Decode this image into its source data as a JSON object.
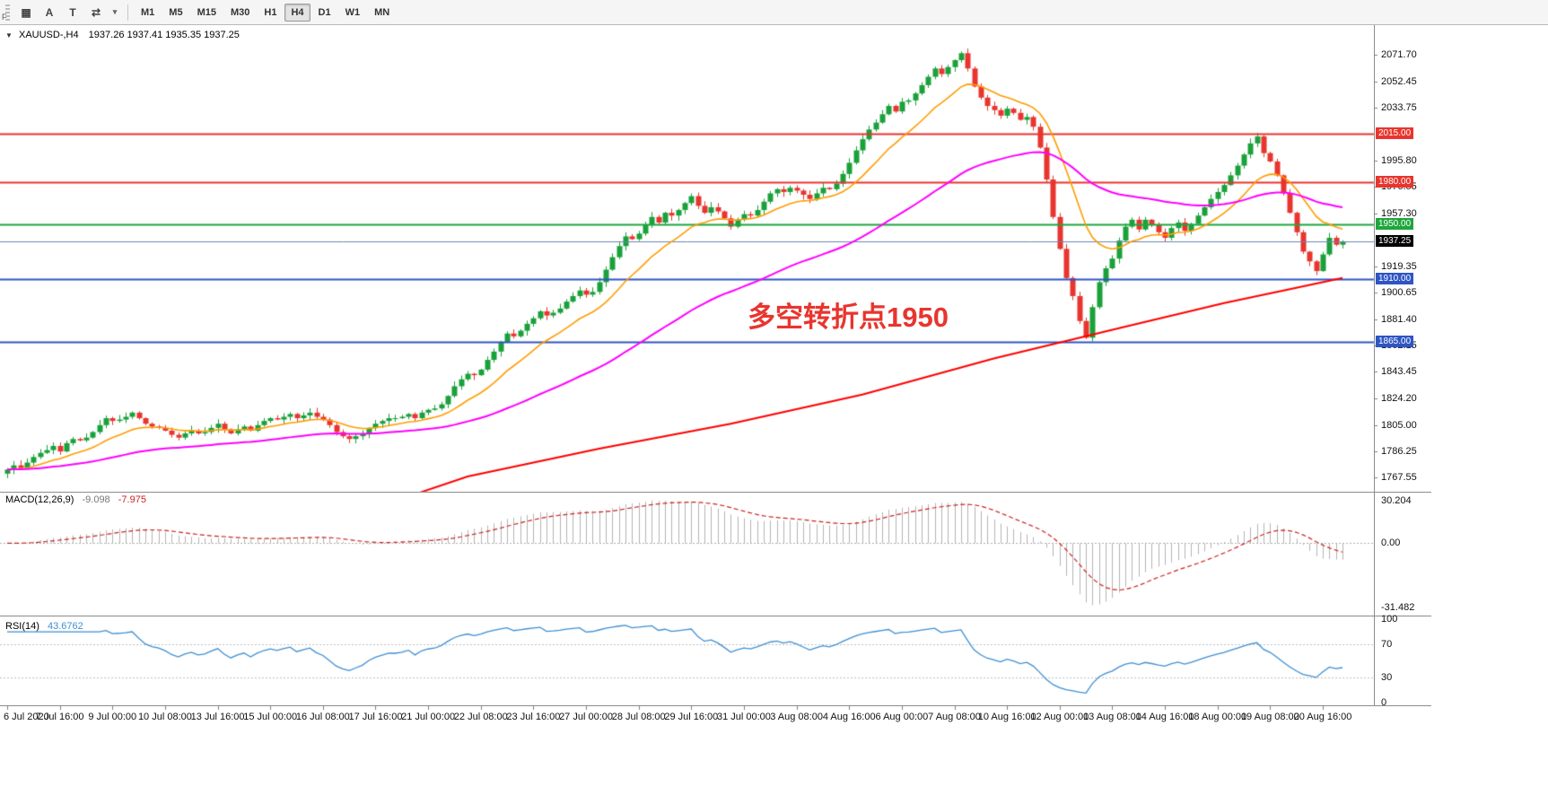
{
  "toolbar": {
    "grip_label": "F",
    "tools": [
      {
        "id": "grid-tool",
        "glyph": "▦"
      },
      {
        "id": "cursor-a-tool",
        "glyph": "A"
      },
      {
        "id": "text-tool",
        "glyph": "T"
      },
      {
        "id": "swap-arrows-tool",
        "glyph": "⇄"
      },
      {
        "id": "tools-dropdown",
        "glyph": "▾"
      }
    ],
    "timeframes": [
      {
        "label": "M1",
        "active": false
      },
      {
        "label": "M5",
        "active": false
      },
      {
        "label": "M15",
        "active": false
      },
      {
        "label": "M30",
        "active": false
      },
      {
        "label": "H1",
        "active": false
      },
      {
        "label": "H4",
        "active": true
      },
      {
        "label": "D1",
        "active": false
      },
      {
        "label": "W1",
        "active": false
      },
      {
        "label": "MN",
        "active": false
      }
    ]
  },
  "chart": {
    "header": {
      "collapse_icon": "▼",
      "symbol_period": "XAUUSD-,H4",
      "ohlc": "1937.26 1937.41 1935.35 1937.25"
    },
    "annotation": {
      "text": "多空转折点1950",
      "color": "#e8352e"
    }
  },
  "macd_panel": {
    "title": "MACD(12,26,9)",
    "value_main": "-9.098",
    "value_signal": "-7.975",
    "axis": [
      "30.204",
      "0.00",
      "-31.482"
    ]
  },
  "rsi_panel": {
    "title": "RSI(14)",
    "value": "43.6762",
    "axis": [
      "100",
      "70",
      "30",
      "0"
    ]
  },
  "chart_data": {
    "type": "candlestick",
    "symbol": "XAUUSD-",
    "timeframe": "H4",
    "up_color": "#1aa13a",
    "down_color": "#e8352e",
    "first_open": 1770,
    "closes": [
      1773,
      1776,
      1774,
      1778,
      1782,
      1785,
      1787,
      1790,
      1786,
      1792,
      1795,
      1794,
      1796,
      1800,
      1805,
      1810,
      1808,
      1809,
      1811,
      1814,
      1810,
      1806,
      1804,
      1803,
      1801,
      1798,
      1796,
      1799,
      1801,
      1799,
      1800,
      1803,
      1806,
      1802,
      1799,
      1802,
      1804,
      1801,
      1805,
      1808,
      1810,
      1809,
      1811,
      1813,
      1810,
      1812,
      1814,
      1811,
      1809,
      1805,
      1800,
      1797,
      1795,
      1797,
      1799,
      1803,
      1806,
      1808,
      1810,
      1810,
      1811,
      1813,
      1810,
      1814,
      1816,
      1817,
      1820,
      1826,
      1833,
      1838,
      1842,
      1841,
      1845,
      1852,
      1858,
      1865,
      1871,
      1869,
      1873,
      1878,
      1882,
      1887,
      1884,
      1886,
      1889,
      1894,
      1898,
      1902,
      1899,
      1901,
      1908,
      1917,
      1926,
      1934,
      1941,
      1939,
      1943,
      1949,
      1955,
      1951,
      1958,
      1956,
      1960,
      1965,
      1970,
      1963,
      1958,
      1962,
      1959,
      1954,
      1948,
      1953,
      1957,
      1956,
      1960,
      1966,
      1972,
      1975,
      1973,
      1976,
      1974,
      1971,
      1968,
      1972,
      1976,
      1975,
      1979,
      1986,
      1994,
      2003,
      2011,
      2018,
      2023,
      2029,
      2035,
      2031,
      2038,
      2039,
      2044,
      2050,
      2056,
      2062,
      2058,
      2063,
      2068,
      2073,
      2062,
      2049,
      2041,
      2035,
      2032,
      2028,
      2033,
      2030,
      2025,
      2027,
      2020,
      2005,
      1982,
      1955,
      1932,
      1911,
      1898,
      1880,
      1868,
      1890,
      1908,
      1918,
      1925,
      1938,
      1948,
      1953,
      1946,
      1953,
      1949,
      1944,
      1940,
      1947,
      1951,
      1945,
      1950,
      1956,
      1962,
      1968,
      1973,
      1978,
      1985,
      1992,
      2000,
      2008,
      2013,
      2001,
      1995,
      1985,
      1972,
      1958,
      1944,
      1930,
      1923,
      1916,
      1928,
      1940,
      1935,
      1937.25
    ],
    "price_axis": {
      "min": 1757,
      "max": 2090,
      "ticks": [
        2071.7,
        2052.45,
        2033.75,
        1995.8,
        1976.55,
        1957.3,
        1919.35,
        1900.65,
        1881.4,
        1862.15,
        1843.45,
        1824.2,
        1805.0,
        1786.25,
        1767.55
      ]
    },
    "levels": [
      {
        "price": 2015.0,
        "label": "2015.00",
        "line_color": "#e8352e",
        "badge_color": "#e8352e",
        "line_width": 2
      },
      {
        "price": 1980.0,
        "label": "1980.00",
        "line_color": "#e8352e",
        "badge_color": "#e8352e",
        "line_width": 2
      },
      {
        "price": 1950.0,
        "label": "1950.00",
        "line_color": "#1fa63d",
        "badge_color": "#1fa63d",
        "line_width": 2
      },
      {
        "price": 1910.0,
        "label": "1910.00",
        "line_color": "#2e55c4",
        "badge_color": "#2e55c4",
        "line_width": 2
      },
      {
        "price": 1865.0,
        "label": "1865.00",
        "line_color": "#2e55c4",
        "badge_color": "#2e55c4",
        "line_width": 2
      }
    ],
    "current_price": {
      "price": 1937.25,
      "label": "1937.25",
      "line_color": "#6b86b5",
      "badge_color": "#000000"
    },
    "moving_averages": [
      {
        "name": "fast-ma",
        "color": "#ff9d00",
        "period": 13
      },
      {
        "name": "medium-ma",
        "color": "#ff00ff",
        "period": 55
      },
      {
        "name": "slow-ma",
        "color": "#ff0000",
        "anchors": [
          [
            55,
            1744
          ],
          [
            70,
            1768
          ],
          [
            90,
            1788
          ],
          [
            110,
            1806
          ],
          [
            130,
            1827
          ],
          [
            150,
            1853
          ],
          [
            170,
            1876
          ],
          [
            185,
            1893
          ],
          [
            195,
            1903
          ],
          [
            203,
            1911
          ]
        ]
      }
    ],
    "macd": {
      "fast": 12,
      "slow": 26,
      "signal": 9,
      "histogram_color": "#b4b4b4",
      "signal_color": "#cc2222"
    },
    "rsi": {
      "period": 14,
      "color": "#3f8fd2",
      "levels": [
        70,
        30
      ]
    },
    "bars_per_label": 8,
    "x_labels": [
      "6 Jul 2020",
      "7 Jul 16:00",
      "9 Jul 00:00",
      "10 Jul 08:00",
      "13 Jul 16:00",
      "15 Jul 00:00",
      "16 Jul 08:00",
      "17 Jul 16:00",
      "21 Jul 00:00",
      "22 Jul 08:00",
      "23 Jul 16:00",
      "27 Jul 00:00",
      "28 Jul 08:00",
      "29 Jul 16:00",
      "31 Jul 00:00",
      "3 Aug 08:00",
      "4 Aug 16:00",
      "6 Aug 00:00",
      "7 Aug 08:00",
      "10 Aug 16:00",
      "12 Aug 00:00",
      "13 Aug 08:00",
      "14 Aug 16:00",
      "18 Aug 00:00",
      "19 Aug 08:00",
      "20 Aug 16:00"
    ]
  }
}
